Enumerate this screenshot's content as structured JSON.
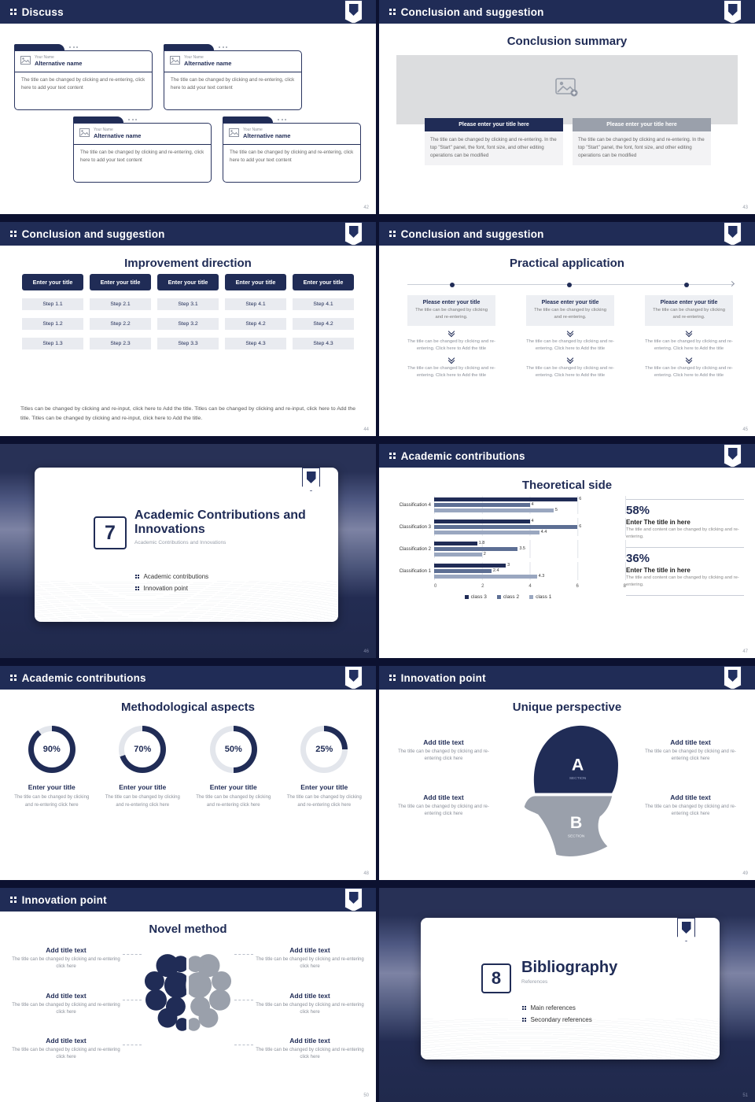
{
  "theme": {
    "navy": "#202c56",
    "mid_blue": "#5d6f94",
    "light_blue": "#9aa7c0",
    "gray": "#9aa0ab",
    "track": "#e3e6ec"
  },
  "slides": {
    "discuss": {
      "header": "Discuss",
      "page": "42",
      "cards": [
        {
          "name_label": "Your Name",
          "title": "Alternative name",
          "body": "The title can be changed by clicking and re-entering, click here to add your text content"
        },
        {
          "name_label": "Your Name",
          "title": "Alternative name",
          "body": "The title can be changed by clicking and re-entering, click here to add your text content"
        },
        {
          "name_label": "Your Name",
          "title": "Alternative name",
          "body": "The title can be changed by clicking and re-entering, click here to add your text content"
        },
        {
          "name_label": "Your Name",
          "title": "Alternative name",
          "body": "The title can be changed by clicking and re-entering, click here to add your text content"
        }
      ]
    },
    "summary": {
      "header": "Conclusion and suggestion",
      "page": "43",
      "title": "Conclusion summary",
      "columns": [
        {
          "button": "Please enter your title here",
          "body": "The title can be changed by clicking and re-entering. In the top \"Start\" panel, the font, font size, and other editing operations can be modified"
        },
        {
          "button": "Please enter your title here",
          "body": "The title can be changed by clicking and re-entering. In the top \"Start\" panel, the font, font size, and other editing operations can be modified"
        }
      ]
    },
    "improvement": {
      "header": "Conclusion and suggestion",
      "page": "44",
      "title": "Improvement direction",
      "columns": [
        {
          "button": "Enter your title",
          "steps": [
            "Step 1.1",
            "Step 1.2",
            "Step 1.3"
          ]
        },
        {
          "button": "Enter your title",
          "steps": [
            "Step 2.1",
            "Step 2.2",
            "Step 2.3"
          ]
        },
        {
          "button": "Enter your title",
          "steps": [
            "Step 3.1",
            "Step 3.2",
            "Step 3.3"
          ]
        },
        {
          "button": "Enter your title",
          "steps": [
            "Step 4.1",
            "Step 4.2",
            "Step 4.3"
          ]
        },
        {
          "button": "Enter your title",
          "steps": [
            "Step 4.1",
            "Step 4.2",
            "Step 4.3"
          ]
        }
      ],
      "footer": "Titles can be changed by clicking and re-input, click here to Add the title. Titles can be changed by clicking and re-input, click here to Add the title. Titles can be changed by clicking and re-input, click here to Add the title."
    },
    "practical": {
      "header": "Conclusion and suggestion",
      "page": "45",
      "title": "Practical application",
      "columns": [
        {
          "title": "Please enter your title",
          "body": "The title can be changed by clicking and re-entering.",
          "step1": "The title can be changed by clicking and re-entering. Click here to Add the title",
          "step2": "The title can be changed by clicking and re-entering. Click here to Add the title"
        },
        {
          "title": "Please enter your title",
          "body": "The title can be changed by clicking and re-entering.",
          "step1": "The title can be changed by clicking and re-entering. Click here to Add the title",
          "step2": "The title can be changed by clicking and re-entering. Click here to Add the title"
        },
        {
          "title": "Please enter your title",
          "body": "The title can be changed by clicking and re-entering.",
          "step1": "The title can be changed by clicking and re-entering. Click here to Add the title",
          "step2": "The title can be changed by clicking and re-entering. Click here to Add the title"
        }
      ]
    },
    "section7": {
      "page": "46",
      "number": "7",
      "title": "Academic Contributions and Innovations",
      "subtitle": "Academic Contributions and Innovations",
      "bullets": [
        "Academic contributions",
        "Innovation point"
      ]
    },
    "theoretical": {
      "header": "Academic contributions",
      "page": "47",
      "title": "Theoretical side",
      "stats": [
        {
          "pct": "58%",
          "title": "Enter The title in here",
          "body": "The title and content can be changed by clicking and re-entering."
        },
        {
          "pct": "36%",
          "title": "Enter The title in here",
          "body": "The title and content can be changed by clicking and re-entering."
        }
      ]
    },
    "method": {
      "header": "Academic contributions",
      "page": "48",
      "title": "Methodological aspects",
      "donuts": [
        {
          "percent": 90,
          "label": "90%",
          "title": "Enter your title",
          "body": "The title can be changed by clicking and re-entering click here"
        },
        {
          "percent": 70,
          "label": "70%",
          "title": "Enter your title",
          "body": "The title can be changed by clicking and re-entering click here"
        },
        {
          "percent": 50,
          "label": "50%",
          "title": "Enter your title",
          "body": "The title can be changed by clicking and re-entering click here"
        },
        {
          "percent": 25,
          "label": "25%",
          "title": "Enter your title",
          "body": "The title can be changed by clicking and re-entering click here"
        }
      ]
    },
    "unique": {
      "header": "Innovation point",
      "page": "49",
      "title": "Unique perspective",
      "section_a": "A",
      "section_b": "B",
      "section_caption": "SECTION",
      "left": [
        {
          "title": "Add title text",
          "body": "The title can be changed by clicking and re-entering click here"
        },
        {
          "title": "Add title text",
          "body": "The title can be changed by clicking and re-entering click here"
        }
      ],
      "right": [
        {
          "title": "Add title text",
          "body": "The title can be changed by clicking and re-entering click here"
        },
        {
          "title": "Add title text",
          "body": "The title can be changed by clicking and re-entering click here"
        }
      ]
    },
    "novel": {
      "header": "Innovation point",
      "page": "50",
      "title": "Novel method",
      "left": [
        {
          "title": "Add title text",
          "body": "The title can be changed by clicking and re-entering click here"
        },
        {
          "title": "Add title text",
          "body": "The title can be changed by clicking and re-entering click here"
        },
        {
          "title": "Add title text",
          "body": "The title can be changed by clicking and re-entering click here"
        }
      ],
      "right": [
        {
          "title": "Add title text",
          "body": "The title can be changed by clicking and re-entering click here"
        },
        {
          "title": "Add title text",
          "body": "The title can be changed by clicking and re-entering click here"
        },
        {
          "title": "Add title text",
          "body": "The title can be changed by clicking and re-entering click here"
        }
      ]
    },
    "biblio": {
      "page": "51",
      "number": "8",
      "title": "Bibliography",
      "subtitle": "References",
      "bullets": [
        "Main references",
        "Secondary references"
      ]
    }
  },
  "chart_data": {
    "type": "bar",
    "orientation": "horizontal",
    "title": "Theoretical side",
    "categories": [
      "Classification 4",
      "Classification 3",
      "Classification 2",
      "Classification 1"
    ],
    "series": [
      {
        "name": "class 3",
        "color": "#202c56",
        "values": [
          6,
          4,
          1.8,
          3
        ]
      },
      {
        "name": "class 2",
        "color": "#5d6f94",
        "values": [
          4,
          6,
          3.5,
          2.4
        ]
      },
      {
        "name": "class 1",
        "color": "#9aa7c0",
        "values": [
          5,
          4.4,
          2,
          4.3
        ]
      }
    ],
    "xlim": [
      0,
      8
    ],
    "xticks": [
      0,
      2,
      4,
      6,
      8
    ],
    "legend_position": "bottom",
    "grid": true
  }
}
